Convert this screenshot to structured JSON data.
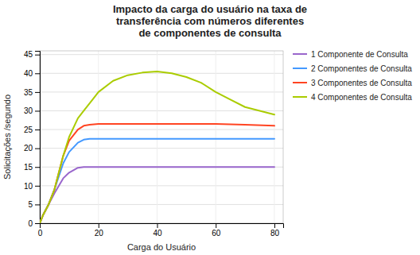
{
  "chart_data": {
    "type": "line",
    "title": "Impacto da carga do usuário na taxa de\ntransferência  com números diferentes\nde componentes de consulta",
    "xlabel": "Carga do Usuário",
    "ylabel": "Solicitações /segundo",
    "xlim": [
      0,
      83
    ],
    "ylim": [
      0,
      46
    ],
    "xticks": [
      0,
      20,
      40,
      60,
      80
    ],
    "yticks": [
      0,
      5,
      10,
      15,
      20,
      25,
      30,
      35,
      40,
      45
    ],
    "grid": true,
    "legend": "right",
    "series": [
      {
        "name": "1 Componente de Consulta",
        "color": "#9966cc",
        "x": [
          0,
          1,
          3,
          5,
          8,
          10,
          13,
          15,
          17,
          20,
          25,
          30,
          40,
          50,
          60,
          70,
          80
        ],
        "values": [
          0,
          2,
          5,
          8,
          12,
          13.5,
          14.8,
          15,
          15,
          15,
          15,
          15,
          15,
          15,
          15,
          15,
          15
        ]
      },
      {
        "name": "2 Componentes de Consulta",
        "color": "#4499ff",
        "x": [
          0,
          1,
          3,
          5,
          8,
          10,
          13,
          15,
          17,
          20,
          25,
          30,
          40,
          50,
          60,
          70,
          80
        ],
        "values": [
          0,
          2,
          5,
          9,
          16,
          19,
          21.5,
          22.3,
          22.5,
          22.5,
          22.5,
          22.5,
          22.5,
          22.5,
          22.5,
          22.5,
          22.5
        ]
      },
      {
        "name": "3 Componentes de Consulta",
        "color": "#ff4422",
        "x": [
          0,
          1,
          3,
          5,
          8,
          10,
          13,
          15,
          17,
          20,
          25,
          30,
          40,
          50,
          60,
          70,
          80
        ],
        "values": [
          0,
          2,
          5,
          9,
          18,
          22,
          25,
          26,
          26.3,
          26.5,
          26.5,
          26.5,
          26.5,
          26.5,
          26.5,
          26.3,
          26
        ]
      },
      {
        "name": "4 Componentes de Consulta",
        "color": "#aacc00",
        "x": [
          0,
          1,
          3,
          5,
          8,
          10,
          13,
          15,
          18,
          20,
          25,
          30,
          35,
          40,
          45,
          50,
          55,
          60,
          65,
          70,
          75,
          80
        ],
        "values": [
          0,
          2,
          5,
          9,
          18,
          23,
          28,
          30,
          33,
          35,
          38,
          39.5,
          40.2,
          40.5,
          40,
          39,
          37.5,
          35,
          33,
          31,
          30,
          29
        ]
      }
    ]
  }
}
